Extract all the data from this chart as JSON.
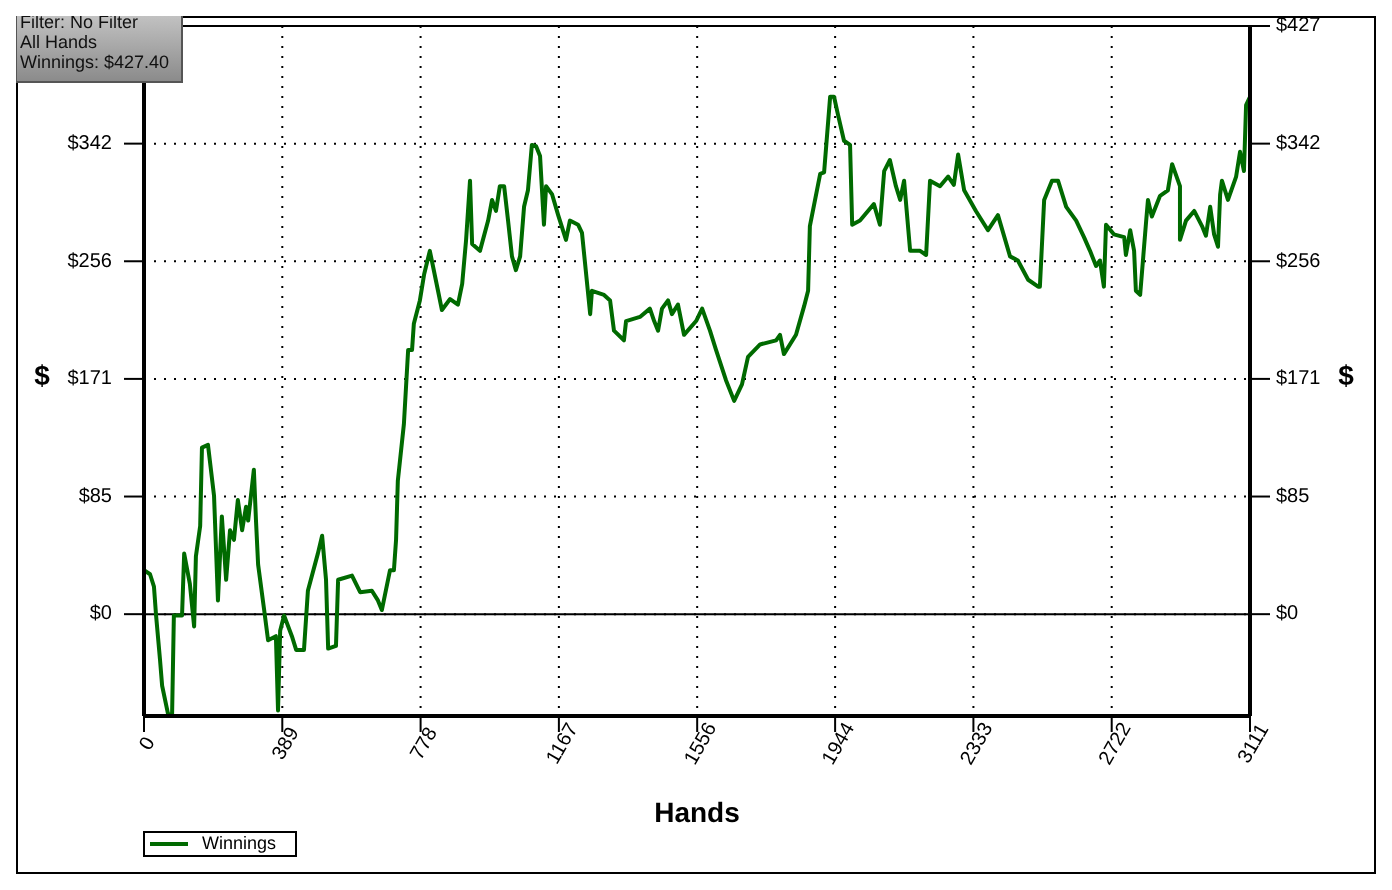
{
  "chart_data": {
    "type": "line",
    "xlabel": "Hands",
    "ylabel": "$",
    "y2label": "$",
    "annotations": [
      "Filter: No Filter",
      "All Hands",
      "Winnings: $427.40"
    ],
    "xlim": [
      0,
      3111
    ],
    "xticks": [
      0,
      389,
      778,
      1167,
      1556,
      1944,
      2333,
      2722,
      3111
    ],
    "ylim": [
      -74,
      427.4
    ],
    "yticks": [
      {
        "value": 0,
        "label": "$0"
      },
      {
        "value": 85.48,
        "label": "$85"
      },
      {
        "value": 170.96,
        "label": "$171"
      },
      {
        "value": 256.44,
        "label": "$256"
      },
      {
        "value": 341.92,
        "label": "$342"
      }
    ],
    "y2lim": [
      -74,
      427.4
    ],
    "y2ticks": [
      {
        "value": 0,
        "label": "$0"
      },
      {
        "value": 85.48,
        "label": "$85"
      },
      {
        "value": 170.96,
        "label": "$171"
      },
      {
        "value": 256.44,
        "label": "$256"
      },
      {
        "value": 341.92,
        "label": "$342"
      },
      {
        "value": 427.4,
        "label": "$427"
      }
    ],
    "ref_lines": [
      {
        "axis": "y",
        "value": 0,
        "color": "#000000"
      }
    ],
    "grid": true,
    "legend": "bottom left",
    "line_style": "solid",
    "x": [
      0,
      17,
      28,
      34,
      45,
      51,
      68,
      79,
      84,
      107,
      113,
      129,
      141,
      146,
      158,
      163,
      180,
      197,
      208,
      219,
      231,
      242,
      253,
      264,
      276,
      287,
      293,
      309,
      315,
      321,
      338,
      349,
      371,
      377,
      383,
      394,
      416,
      428,
      450,
      461,
      489,
      501,
      512,
      518,
      540,
      546,
      585,
      608,
      641,
      658,
      669,
      692,
      703,
      709,
      714,
      731,
      743,
      754,
      759,
      776,
      788,
      804,
      827,
      838,
      861,
      883,
      895,
      906,
      917,
      923,
      945,
      968,
      979,
      990,
      1001,
      1013,
      1024,
      1035,
      1046,
      1058,
      1069,
      1080,
      1091,
      1103,
      1114,
      1125,
      1131,
      1148,
      1165,
      1187,
      1198,
      1221,
      1232,
      1255,
      1260,
      1294,
      1311,
      1322,
      1350,
      1356,
      1395,
      1423,
      1435,
      1446,
      1457,
      1474,
      1485,
      1502,
      1519,
      1553,
      1570,
      1592,
      1609,
      1637,
      1660,
      1682,
      1699,
      1733,
      1778,
      1789,
      1800,
      1834,
      1857,
      1868,
      1873,
      1902,
      1913,
      1930,
      1941,
      1952,
      1969,
      1986,
      1992,
      2014,
      2053,
      2070,
      2082,
      2098,
      2115,
      2127,
      2138,
      2155,
      2183,
      2200,
      2211,
      2239,
      2262,
      2278,
      2290,
      2307,
      2340,
      2374,
      2402,
      2436,
      2458,
      2487,
      2515,
      2520,
      2532,
      2554,
      2571,
      2594,
      2622,
      2644,
      2661,
      2678,
      2689,
      2700,
      2706,
      2728,
      2757,
      2762,
      2774,
      2785,
      2790,
      2802,
      2819,
      2824,
      2835,
      2858,
      2880,
      2892,
      2914,
      2914,
      2931,
      2954,
      2976,
      2987,
      2999,
      3010,
      3021,
      3027,
      3032,
      3049,
      3072,
      3083,
      3094,
      3100,
      3111,
      3111
    ],
    "series": [
      {
        "name": "Winnings",
        "color": "#006a00",
        "values": [
          32,
          29,
          20,
          -1,
          -33,
          -52,
          -73,
          -73,
          -1,
          -1,
          44,
          22,
          -9,
          42,
          64,
          121,
          123,
          86,
          10,
          71,
          25,
          61,
          54,
          83,
          61,
          78,
          68,
          105,
          68,
          36,
          3,
          -19,
          -16,
          -70,
          -12,
          -1,
          -16,
          -26,
          -26,
          17,
          44,
          57,
          25,
          -25,
          -23,
          25,
          28,
          16,
          17,
          10,
          3,
          32,
          32,
          54,
          97,
          138,
          192,
          192,
          211,
          228,
          247,
          264,
          235,
          221,
          229,
          225,
          240,
          272,
          315,
          269,
          264,
          286,
          301,
          293,
          311,
          311,
          286,
          260,
          250,
          260,
          296,
          308,
          341,
          340,
          333,
          283,
          311,
          305,
          290,
          272,
          286,
          283,
          277,
          218,
          235,
          232,
          228,
          206,
          199,
          213,
          216,
          222,
          213,
          206,
          222,
          228,
          218,
          225,
          203,
          213,
          222,
          206,
          192,
          170,
          155,
          167,
          187,
          196,
          199,
          203,
          189,
          203,
          224,
          235,
          282,
          320,
          321,
          376,
          376,
          363,
          344,
          341,
          283,
          286,
          298,
          283,
          322,
          330,
          311,
          301,
          315,
          264,
          264,
          261,
          315,
          311,
          318,
          312,
          334,
          308,
          293,
          279,
          290,
          260,
          257,
          243,
          238,
          238,
          301,
          315,
          315,
          296,
          286,
          274,
          264,
          253,
          257,
          238,
          283,
          276,
          274,
          261,
          279,
          264,
          235,
          232,
          286,
          301,
          289,
          304,
          308,
          327,
          311,
          272,
          286,
          293,
          282,
          275,
          296,
          276,
          267,
          305,
          315,
          301,
          318,
          336,
          322,
          370,
          376,
          427
        ]
      }
    ]
  }
}
